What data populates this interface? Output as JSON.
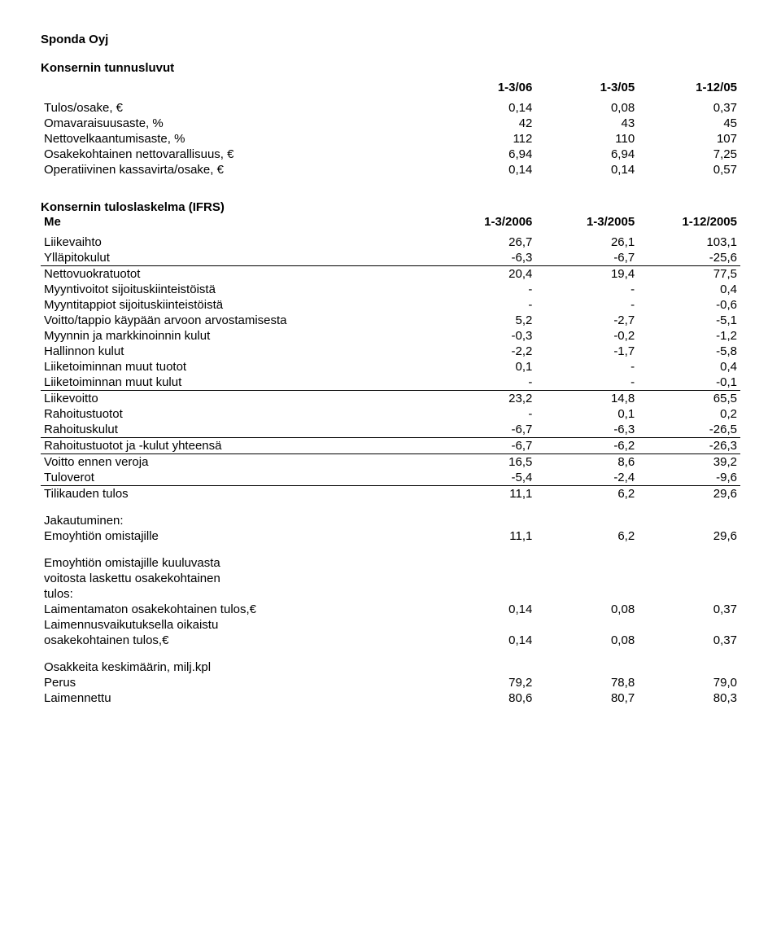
{
  "company": "Sponda Oyj",
  "sections": {
    "key_figures": {
      "title": "Konsernin tunnusluvut",
      "headers": [
        "1-3/06",
        "1-3/05",
        "1-12/05"
      ],
      "rows": [
        {
          "label": "Tulos/osake, €",
          "v": [
            "0,14",
            "0,08",
            "0,37"
          ]
        },
        {
          "label": "Omavaraisuusaste, %",
          "v": [
            "42",
            "43",
            "45"
          ]
        },
        {
          "label": "Nettovelkaantumisaste, %",
          "v": [
            "112",
            "110",
            "107"
          ]
        },
        {
          "label": "Osakekohtainen nettovarallisuus, €",
          "v": [
            "6,94",
            "6,94",
            "7,25"
          ]
        },
        {
          "label": "Operatiivinen kassavirta/osake, €",
          "v": [
            "0,14",
            "0,14",
            "0,57"
          ]
        }
      ]
    },
    "income_statement": {
      "title": "Konsernin tuloslaskelma (IFRS)",
      "unit": "Me",
      "headers": [
        "1-3/2006",
        "1-3/2005",
        "1-12/2005"
      ],
      "rows": [
        {
          "label": "Liikevaihto",
          "v": [
            "26,7",
            "26,1",
            "103,1"
          ]
        },
        {
          "label": "Ylläpitokulut",
          "v": [
            "-6,3",
            "-6,7",
            "-25,6"
          ]
        },
        {
          "label": "Nettovuokratuotot",
          "v": [
            "20,4",
            "19,4",
            "77,5"
          ],
          "border": true
        },
        {
          "label": "Myyntivoitot sijoituskiinteistöistä",
          "v": [
            "-",
            "-",
            "0,4"
          ]
        },
        {
          "label": "Myyntitappiot sijoituskiinteistöistä",
          "v": [
            "-",
            "-",
            "-0,6"
          ]
        },
        {
          "label": "Voitto/tappio käypään arvoon arvostamisesta",
          "v": [
            "5,2",
            "-2,7",
            "-5,1"
          ]
        },
        {
          "label": "Myynnin ja markkinoinnin kulut",
          "v": [
            "-0,3",
            "-0,2",
            "-1,2"
          ]
        },
        {
          "label": "Hallinnon kulut",
          "v": [
            "-2,2",
            "-1,7",
            "-5,8"
          ]
        },
        {
          "label": "Liiketoiminnan muut tuotot",
          "v": [
            "0,1",
            "-",
            "0,4"
          ]
        },
        {
          "label": "Liiketoiminnan muut kulut",
          "v": [
            "-",
            "-",
            "-0,1"
          ]
        },
        {
          "label": "Liikevoitto",
          "v": [
            "23,2",
            "14,8",
            "65,5"
          ],
          "border": true
        },
        {
          "label": "Rahoitustuotot",
          "v": [
            "-",
            "0,1",
            "0,2"
          ]
        },
        {
          "label": "Rahoituskulut",
          "v": [
            "-6,7",
            "-6,3",
            "-26,5"
          ]
        },
        {
          "label": "Rahoitustuotot ja -kulut yhteensä",
          "v": [
            "-6,7",
            "-6,2",
            "-26,3"
          ],
          "border": true
        },
        {
          "label": "Voitto ennen veroja",
          "v": [
            "16,5",
            "8,6",
            "39,2"
          ],
          "border": true
        },
        {
          "label": "Tuloverot",
          "v": [
            "-5,4",
            "-2,4",
            "-9,6"
          ]
        },
        {
          "label": "Tilikauden tulos",
          "v": [
            "11,1",
            "6,2",
            "29,6"
          ],
          "border": true
        }
      ],
      "allocation": {
        "title": "Jakautuminen:",
        "rows": [
          {
            "label": "Emoyhtiön omistajille",
            "v": [
              "11,1",
              "6,2",
              "29,6"
            ]
          }
        ]
      },
      "eps_block": {
        "intro": [
          "Emoyhtiön omistajille kuuluvasta",
          "voitosta laskettu osakekohtainen",
          "tulos:"
        ],
        "rows": [
          {
            "label": "Laimentamaton osakekohtainen tulos,€",
            "v": [
              "0,14",
              "0,08",
              "0,37"
            ]
          },
          {
            "label_lines": [
              "Laimennusvaikutuksella oikaistu",
              "osakekohtainen tulos,€"
            ],
            "v": [
              "0,14",
              "0,08",
              "0,37"
            ]
          }
        ]
      },
      "shares": {
        "title": "Osakkeita keskimäärin, milj.kpl",
        "rows": [
          {
            "label": "Perus",
            "v": [
              "79,2",
              "78,8",
              "79,0"
            ]
          },
          {
            "label": "Laimennettu",
            "v": [
              "80,6",
              "80,7",
              "80,3"
            ]
          }
        ]
      }
    }
  }
}
